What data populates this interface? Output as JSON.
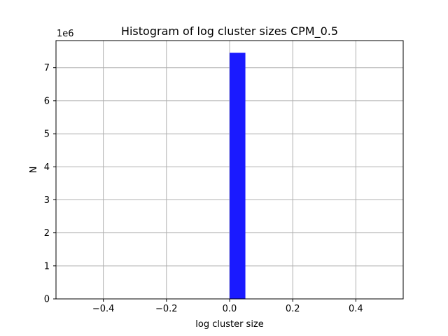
{
  "chart_data": {
    "type": "bar",
    "title": "Histogram of log cluster sizes CPM_0.5",
    "xlabel": "log cluster size",
    "ylabel": "N",
    "y_offset_label": "1e6",
    "xlim": [
      -0.55,
      0.55
    ],
    "ylim": [
      0,
      7.82
    ],
    "grid": true,
    "bar_color": "#1a1aff",
    "bins": [
      {
        "x0": 0.0,
        "x1": 0.05,
        "value": 7.45
      }
    ],
    "xticks": [
      -0.4,
      -0.2,
      0.0,
      0.2,
      0.4
    ],
    "xtick_labels": [
      "−0.4",
      "−0.2",
      "0.0",
      "0.2",
      "0.4"
    ],
    "yticks": [
      0,
      1,
      2,
      3,
      4,
      5,
      6,
      7
    ],
    "ytick_labels": [
      "0",
      "1",
      "2",
      "3",
      "4",
      "5",
      "6",
      "7"
    ]
  }
}
